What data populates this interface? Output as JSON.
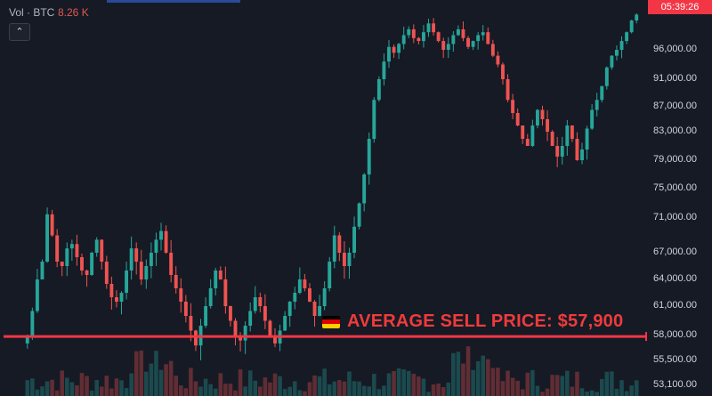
{
  "header": {
    "vol_label": "Vol · BTC",
    "vol_value": "8.26 K",
    "collapse_icon": "chevron-up-icon"
  },
  "countdown": "05:39:26",
  "annotation": {
    "text": "AVERAGE SELL PRICE: $57,900",
    "flag_icon": "germany-flag-icon",
    "color": "#ef3b3b"
  },
  "colors": {
    "background": "#161a25",
    "up": "#26a69a",
    "down": "#ef5350",
    "line": "#f23645"
  },
  "chart_data": {
    "type": "candlestick",
    "y_axis_ticks": [
      "96,000.00",
      "91,000.00",
      "87,000.00",
      "83,000.00",
      "79,000.00",
      "75,000.00",
      "71,000.00",
      "67,000.00",
      "64,000.00",
      "61,000.00",
      "58,000.00",
      "55,500.00",
      "53,100.00"
    ],
    "horizontal_line": 57900,
    "close_approx": [
      58000,
      60500,
      64000,
      66000,
      71500,
      69000,
      66000,
      65500,
      67500,
      68000,
      66500,
      65000,
      64500,
      67000,
      68500,
      66000,
      63500,
      62000,
      61500,
      62500,
      65000,
      67500,
      66000,
      64000,
      65500,
      67000,
      68500,
      69500,
      67000,
      64500,
      63000,
      61500,
      60000,
      58500,
      57000,
      59000,
      61000,
      63000,
      65000,
      64000,
      61000,
      59500,
      58000,
      57500,
      59000,
      60500,
      62000,
      61000,
      59500,
      58000,
      57200,
      58500,
      60000,
      61500,
      62500,
      64000,
      63000,
      61500,
      60000,
      61000,
      63000,
      66000,
      69000,
      67000,
      65500,
      67000,
      70000,
      73000,
      77000,
      82000,
      88000,
      91000,
      94000,
      96500,
      95500,
      97000,
      98500,
      99500,
      98000,
      97500,
      99000,
      100500,
      99000,
      97500,
      96000,
      97000,
      98500,
      99500,
      98000,
      96500,
      97500,
      98500,
      99000,
      97000,
      95000,
      93500,
      91000,
      88000,
      86000,
      84000,
      82000,
      81000,
      84000,
      86500,
      85000,
      83000,
      81000,
      79500,
      81000,
      84000,
      82000,
      79000,
      80500,
      83500,
      86500,
      88000,
      90000,
      93000,
      95000,
      96000,
      97500,
      99000,
      101000,
      102000
    ]
  }
}
